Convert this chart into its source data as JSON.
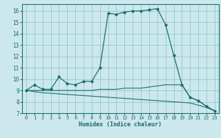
{
  "xlabel": "Humidex (Indice chaleur)",
  "bg_color": "#cce8ec",
  "grid_color": "#8cc8d0",
  "line_color": "#1a6b6e",
  "xlim": [
    -0.5,
    23.5
  ],
  "ylim": [
    7,
    16.6
  ],
  "xticks": [
    0,
    1,
    2,
    3,
    4,
    5,
    6,
    7,
    8,
    9,
    10,
    11,
    12,
    13,
    14,
    15,
    16,
    17,
    18,
    19,
    20,
    21,
    22,
    23
  ],
  "yticks": [
    7,
    8,
    9,
    10,
    11,
    12,
    13,
    14,
    15,
    16
  ],
  "line1_x": [
    0,
    1,
    2,
    3,
    4,
    5,
    6,
    7,
    8,
    9,
    10,
    11,
    12,
    13,
    14,
    15,
    16,
    17,
    18,
    19,
    20,
    21,
    22,
    23
  ],
  "line1_y": [
    9.0,
    9.5,
    9.1,
    9.1,
    10.2,
    9.6,
    9.5,
    9.8,
    9.8,
    11.0,
    15.8,
    15.7,
    15.9,
    16.0,
    16.0,
    16.1,
    16.2,
    14.8,
    12.1,
    9.5,
    8.4,
    8.1,
    7.6,
    7.2
  ],
  "line2_x": [
    0,
    1,
    2,
    3,
    4,
    5,
    6,
    7,
    8,
    9,
    10,
    11,
    12,
    13,
    14,
    15,
    16,
    17,
    18,
    19,
    20,
    21,
    22,
    23
  ],
  "line2_y": [
    9.0,
    9.0,
    9.0,
    9.0,
    9.0,
    9.0,
    9.0,
    9.0,
    9.0,
    9.1,
    9.1,
    9.1,
    9.2,
    9.2,
    9.2,
    9.3,
    9.4,
    9.5,
    9.5,
    9.5,
    8.4,
    8.1,
    7.6,
    7.2
  ],
  "line3_x": [
    0,
    1,
    2,
    3,
    4,
    5,
    6,
    7,
    8,
    9,
    10,
    11,
    12,
    13,
    14,
    15,
    16,
    17,
    18,
    19,
    20,
    21,
    22,
    23
  ],
  "line3_y": [
    9.0,
    8.9,
    8.8,
    8.75,
    8.7,
    8.65,
    8.6,
    8.55,
    8.5,
    8.45,
    8.4,
    8.35,
    8.3,
    8.25,
    8.2,
    8.15,
    8.1,
    8.05,
    8.0,
    7.95,
    7.9,
    7.7,
    7.5,
    7.2
  ]
}
